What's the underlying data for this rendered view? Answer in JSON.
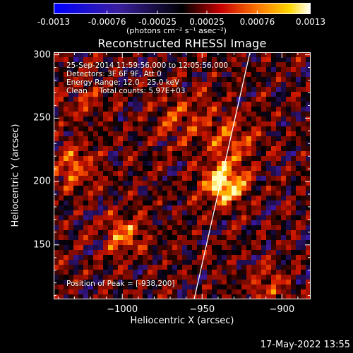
{
  "colorbar": {
    "tick_labels": [
      "-0.0013",
      "-0.00076",
      "-0.00025",
      "0.00025",
      "0.00076",
      "0.0013"
    ],
    "tick_values": [
      -0.0013,
      -0.00076,
      -0.00025,
      0.00025,
      0.00076,
      0.0013
    ],
    "range": [
      -0.0013,
      0.0013
    ],
    "units_label": "(photons cm⁻² s⁻¹ asec⁻²)"
  },
  "chart_data": {
    "type": "heatmap",
    "title": "Reconstructed RHESSI Image",
    "xlabel": "Heliocentric X (arcsec)",
    "ylabel": "Heliocentric Y (arcsec)",
    "xlim": [
      -1043,
      -882
    ],
    "ylim": [
      107,
      302
    ],
    "x_ticks": [
      -1000,
      -950,
      -900
    ],
    "x_tick_labels": [
      "−1000",
      "−950",
      "−900"
    ],
    "y_ticks": [
      150,
      200,
      250,
      300
    ],
    "y_tick_labels": [
      "150",
      "200",
      "250",
      "300"
    ],
    "colormap": [
      "#0000ff",
      "#000000",
      "#ff0000",
      "#ffff00",
      "#ffffff"
    ],
    "peak": [
      -938,
      200
    ],
    "limb_line": [
      [
        -955,
        107
      ],
      [
        -920,
        302
      ]
    ],
    "annotations": {
      "time": "25-Sep-2014 11:59:56.000 to 12:05:56.000",
      "detectors": "Detectors: 3F 6F 9F, Att 0",
      "energy": "Energy Range: 12.0 - 25.0 keV",
      "method": "Clean     Total counts: 5.97E+03",
      "peak_text": "Position of Peak = [-938,200]"
    }
  },
  "footer": {
    "timestamp": "17-May-2022 13:55"
  }
}
